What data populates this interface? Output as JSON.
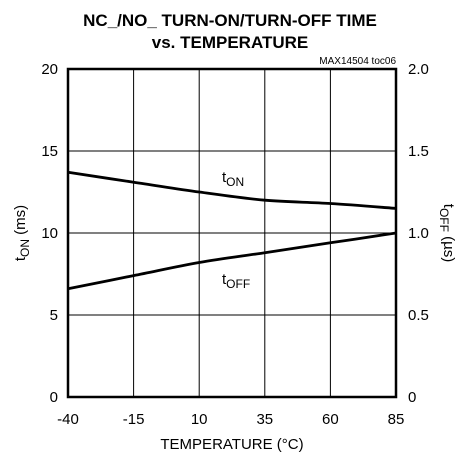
{
  "chart_data": {
    "type": "line",
    "title_line1": "NC_/NO_ TURN-ON/TURN-OFF TIME",
    "title_line2": "vs. TEMPERATURE",
    "figure_id": "MAX14504 toc06",
    "xlabel": "TEMPERATURE (°C)",
    "ylabel_left": {
      "main": "t",
      "sub": "ON",
      "rest": " (ms)"
    },
    "ylabel_right": {
      "main": "t",
      "sub": "OFF",
      "rest": " (µs)"
    },
    "xlim": [
      -40,
      85
    ],
    "ylim_left": [
      0,
      20
    ],
    "ylim_right": [
      0,
      2.0
    ],
    "x_ticks": [
      -40,
      -15,
      10,
      35,
      60,
      85
    ],
    "x_tick_labels": [
      "-40",
      "-15",
      "10",
      "35",
      "60",
      "85"
    ],
    "y_ticks_left": [
      0,
      5,
      10,
      15,
      20
    ],
    "y_tick_labels_left": [
      "0",
      "5",
      "10",
      "15",
      "20"
    ],
    "y_ticks_right": [
      0,
      0.5,
      1.0,
      1.5,
      2.0
    ],
    "y_tick_labels_right": [
      "0",
      "0.5",
      "1.0",
      "1.5",
      "2.0"
    ],
    "grid": true,
    "series": [
      {
        "name_main": "t",
        "name_sub": "ON",
        "axis": "left",
        "x": [
          -40,
          -15,
          10,
          35,
          60,
          85
        ],
        "y": [
          13.7,
          13.1,
          12.5,
          12.0,
          11.8,
          11.5
        ],
        "color": "#000000"
      },
      {
        "name_main": "t",
        "name_sub": "OFF",
        "axis": "right",
        "x": [
          -40,
          -15,
          10,
          35,
          60,
          85
        ],
        "y": [
          0.66,
          0.74,
          0.82,
          0.88,
          0.94,
          1.0
        ],
        "color": "#000000"
      }
    ]
  }
}
